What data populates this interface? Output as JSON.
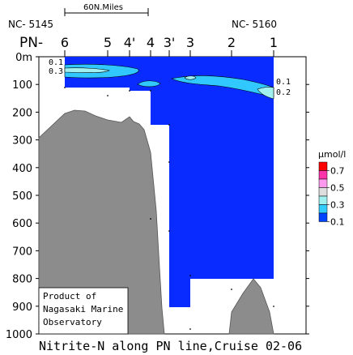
{
  "chart_data": {
    "type": "contour",
    "title": "Nitrite-N along PN line,Cruise 02-06",
    "scale_bar": "60N.Miles",
    "stations_line_label": "PN-",
    "left_ship_code": "NC- 5145",
    "right_ship_code": "NC- 5160",
    "stations": [
      "6",
      "5",
      "4'",
      "4",
      "3'",
      "3",
      "2",
      "1"
    ],
    "depth_label_surface": "0m",
    "y_ticks": [
      "100",
      "200",
      "300",
      "400",
      "500",
      "600",
      "700",
      "800",
      "900",
      "1000"
    ],
    "ylim": [
      0,
      1000
    ],
    "colorbar": {
      "unit": "μmol/l",
      "levels": [
        "0.7",
        "0.5",
        "0.3",
        "0.1"
      ],
      "colors": [
        "#ff0000",
        "#ff33aa",
        "#ff99ee",
        "#dddddd",
        "#a0f0f0",
        "#33ccff",
        "#0044ff"
      ]
    },
    "contour_labels": [
      {
        "text": "0.1",
        "side": "left"
      },
      {
        "text": "0.3",
        "side": "left"
      },
      {
        "text": "0.1",
        "side": "right"
      },
      {
        "text": "0.2",
        "side": "right"
      }
    ],
    "credit": [
      "Product of",
      "Nagasaki Marine",
      "Observatory"
    ]
  }
}
